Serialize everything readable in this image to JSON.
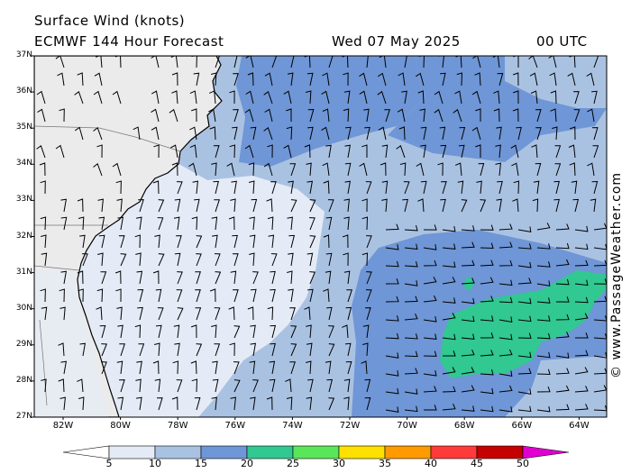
{
  "header": {
    "title": "Surface Wind (knots)",
    "model": "ECMWF 144 Hour Forecast",
    "date": "Wed 07 May 2025",
    "time": "00 UTC"
  },
  "axes": {
    "lat_labels": [
      "37N",
      "36N",
      "35N",
      "34N",
      "33N",
      "32N",
      "31N",
      "30N",
      "29N",
      "28N",
      "27N"
    ],
    "lon_labels": [
      "82W",
      "80W",
      "78W",
      "76W",
      "74W",
      "72W",
      "70W",
      "68W",
      "66W",
      "64W"
    ]
  },
  "colorbar": {
    "values": [
      "5",
      "10",
      "15",
      "20",
      "25",
      "30",
      "35",
      "40",
      "45",
      "50"
    ],
    "colors": [
      "#ffffff",
      "#e4ebf6",
      "#aac2e2",
      "#6f96d6",
      "#31c891",
      "#5ae65a",
      "#ffe000",
      "#ff9a00",
      "#ff3a3a",
      "#c40000",
      "#e000d0"
    ]
  },
  "colors": {
    "land": "#ebebeb",
    "calm": "#e4ebf6",
    "light": "#aac2e2",
    "moderate": "#6f96d6",
    "fresh": "#31c891"
  },
  "credit": "© www.PassageWeather.com"
}
